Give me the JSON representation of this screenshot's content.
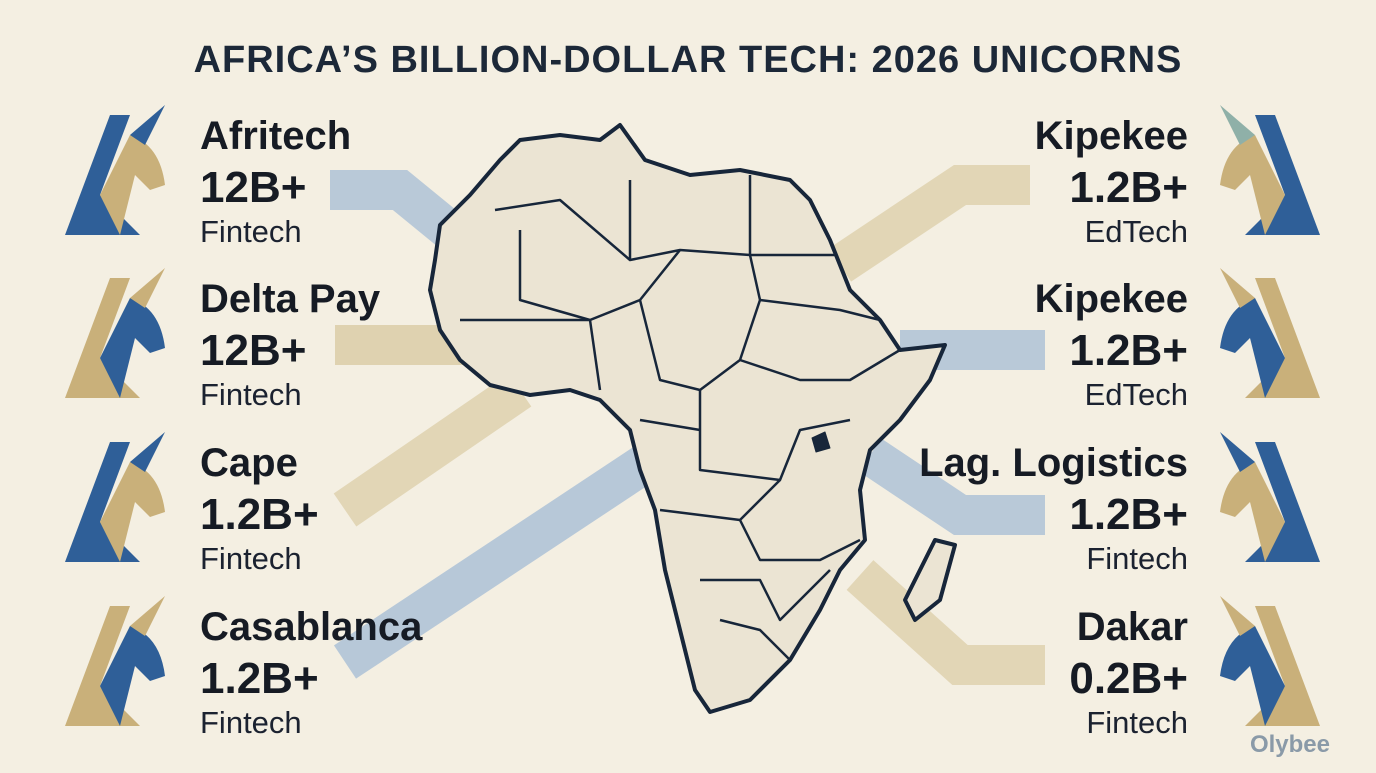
{
  "title": "AFRICA’S BILLION-DOLLAR TECH: 2026 UNICORNS",
  "left": [
    {
      "name": "Afritech",
      "value": "12B+",
      "sector": "Fintech"
    },
    {
      "name": "Delta Pay",
      "value": "12B+",
      "sector": "Fintech"
    },
    {
      "name": "Cape",
      "value": "1.2B+",
      "sector": "Fintech"
    },
    {
      "name": "Casablanca",
      "value": "1.2B+",
      "sector": "Fintech"
    }
  ],
  "right": [
    {
      "name": "Kipekee",
      "value": "1.2B+",
      "sector": "EdTech"
    },
    {
      "name": "Kipekee",
      "value": "1.2B+",
      "sector": "EdTech"
    },
    {
      "name": "Lag. Logistics",
      "value": "1.2B+",
      "sector": "Fintech"
    },
    {
      "name": "Dakar",
      "value": "0.2B+",
      "sector": "Fintech"
    }
  ],
  "watermark": "Olybee"
}
